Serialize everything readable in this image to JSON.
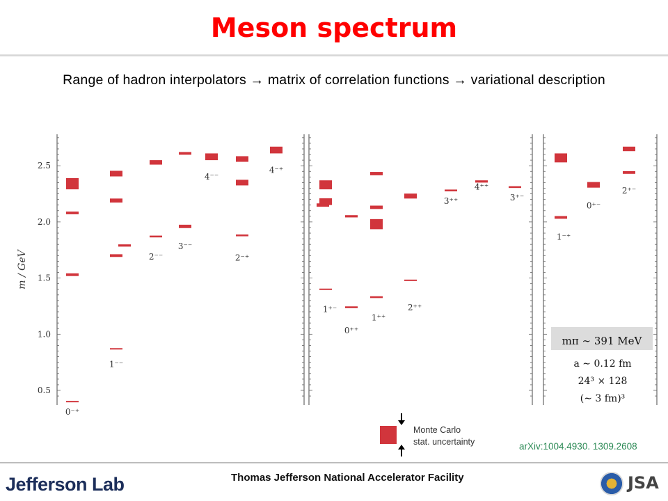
{
  "title": "Meson spectrum",
  "subtitle": "Range of hadron interpolators → matrix of correlation functions → variational description",
  "chart_data": {
    "type": "scatter",
    "ylabel": "m / GeV",
    "ylim": [
      0.37,
      2.78
    ],
    "yticks": [
      0.5,
      1.0,
      1.5,
      2.0,
      2.5
    ],
    "panels": [
      {
        "name": "left",
        "columns": [
          {
            "label": "0⁻⁺",
            "states": [
              {
                "m": 0.4,
                "err": 0.004
              },
              {
                "m": 1.53,
                "err": 0.012
              },
              {
                "m": 2.08,
                "err": 0.012
              },
              {
                "m": 2.34,
                "err": 0.05
              }
            ]
          },
          {
            "label": "1⁻⁻",
            "states": [
              {
                "m": 0.87,
                "err": 0.003
              },
              {
                "m": 1.7,
                "err": 0.012
              },
              {
                "m": 2.19,
                "err": 0.018
              },
              {
                "m": 2.43,
                "err": 0.025
              }
            ]
          },
          {
            "label": "",
            "states": [
              {
                "m": 1.79,
                "err": 0.01
              }
            ]
          },
          {
            "label": "2⁻⁻",
            "states": [
              {
                "m": 1.87,
                "err": 0.008
              },
              {
                "m": 2.53,
                "err": 0.02
              }
            ]
          },
          {
            "label": "3⁻⁻",
            "states": [
              {
                "m": 1.96,
                "err": 0.015
              },
              {
                "m": 2.61,
                "err": 0.012
              }
            ]
          },
          {
            "label": "4⁻⁻",
            "states": [
              {
                "m": 2.58,
                "err": 0.03
              }
            ]
          },
          {
            "label": "2⁻⁺",
            "states": [
              {
                "m": 1.88,
                "err": 0.008
              },
              {
                "m": 2.35,
                "err": 0.025
              },
              {
                "m": 2.56,
                "err": 0.025
              }
            ]
          },
          {
            "label": "4⁻⁺",
            "states": [
              {
                "m": 2.64,
                "err": 0.03
              }
            ]
          }
        ]
      },
      {
        "name": "middle",
        "columns": [
          {
            "label": "",
            "states": [
              {
                "m": 2.15,
                "err": 0.015
              }
            ]
          },
          {
            "label": "1⁺⁻",
            "states": [
              {
                "m": 1.4,
                "err": 0.005
              },
              {
                "m": 2.18,
                "err": 0.03
              },
              {
                "m": 2.33,
                "err": 0.04
              }
            ]
          },
          {
            "label": "0⁺⁺",
            "states": [
              {
                "m": 1.24,
                "err": 0.008
              },
              {
                "m": 2.05,
                "err": 0.01
              }
            ]
          },
          {
            "label": "1⁺⁺",
            "states": [
              {
                "m": 1.33,
                "err": 0.008
              },
              {
                "m": 1.98,
                "err": 0.045
              },
              {
                "m": 2.13,
                "err": 0.015
              },
              {
                "m": 2.43,
                "err": 0.015
              }
            ]
          },
          {
            "label": "2⁺⁺",
            "states": [
              {
                "m": 1.48,
                "err": 0.005
              },
              {
                "m": 2.22,
                "err": 0.012
              },
              {
                "m": 2.24,
                "err": 0.012
              }
            ]
          },
          {
            "label": "3⁺⁺",
            "states": [
              {
                "m": 2.28,
                "err": 0.008
              }
            ]
          },
          {
            "label": "4⁺⁺",
            "states": [
              {
                "m": 2.36,
                "err": 0.01
              }
            ]
          },
          {
            "label": "3⁺⁻",
            "states": [
              {
                "m": 2.31,
                "err": 0.008
              }
            ]
          }
        ]
      },
      {
        "name": "right",
        "columns": [
          {
            "label": "1⁻⁺",
            "states": [
              {
                "m": 2.04,
                "err": 0.012
              },
              {
                "m": 2.57,
                "err": 0.04
              }
            ]
          },
          {
            "label": "0⁺⁻",
            "states": [
              {
                "m": 2.33,
                "err": 0.025
              }
            ]
          },
          {
            "label": "2⁺⁻",
            "states": [
              {
                "m": 2.44,
                "err": 0.012
              },
              {
                "m": 2.65,
                "err": 0.02
              }
            ]
          }
        ]
      }
    ],
    "annotations": {
      "mpi": "mπ ∼ 391 MeV",
      "spacing": "a ∼ 0.12 fm",
      "volume": "24³ × 128",
      "box": "(∼ 3 fm)³"
    },
    "legend": "Monte Carlo stat. uncertainty"
  },
  "legend_label_1": "Monte Carlo",
  "legend_label_2": "stat. uncertainty",
  "reference": "arXiv:1004.4930. 1309.2608",
  "footer": {
    "logo": "Jefferson Lab",
    "facility": "Thomas Jefferson National Accelerator Facility",
    "jsa": "JSA"
  },
  "colors": {
    "title": "#ff0000",
    "state": "#d1353c",
    "reference": "#2e8b57"
  }
}
